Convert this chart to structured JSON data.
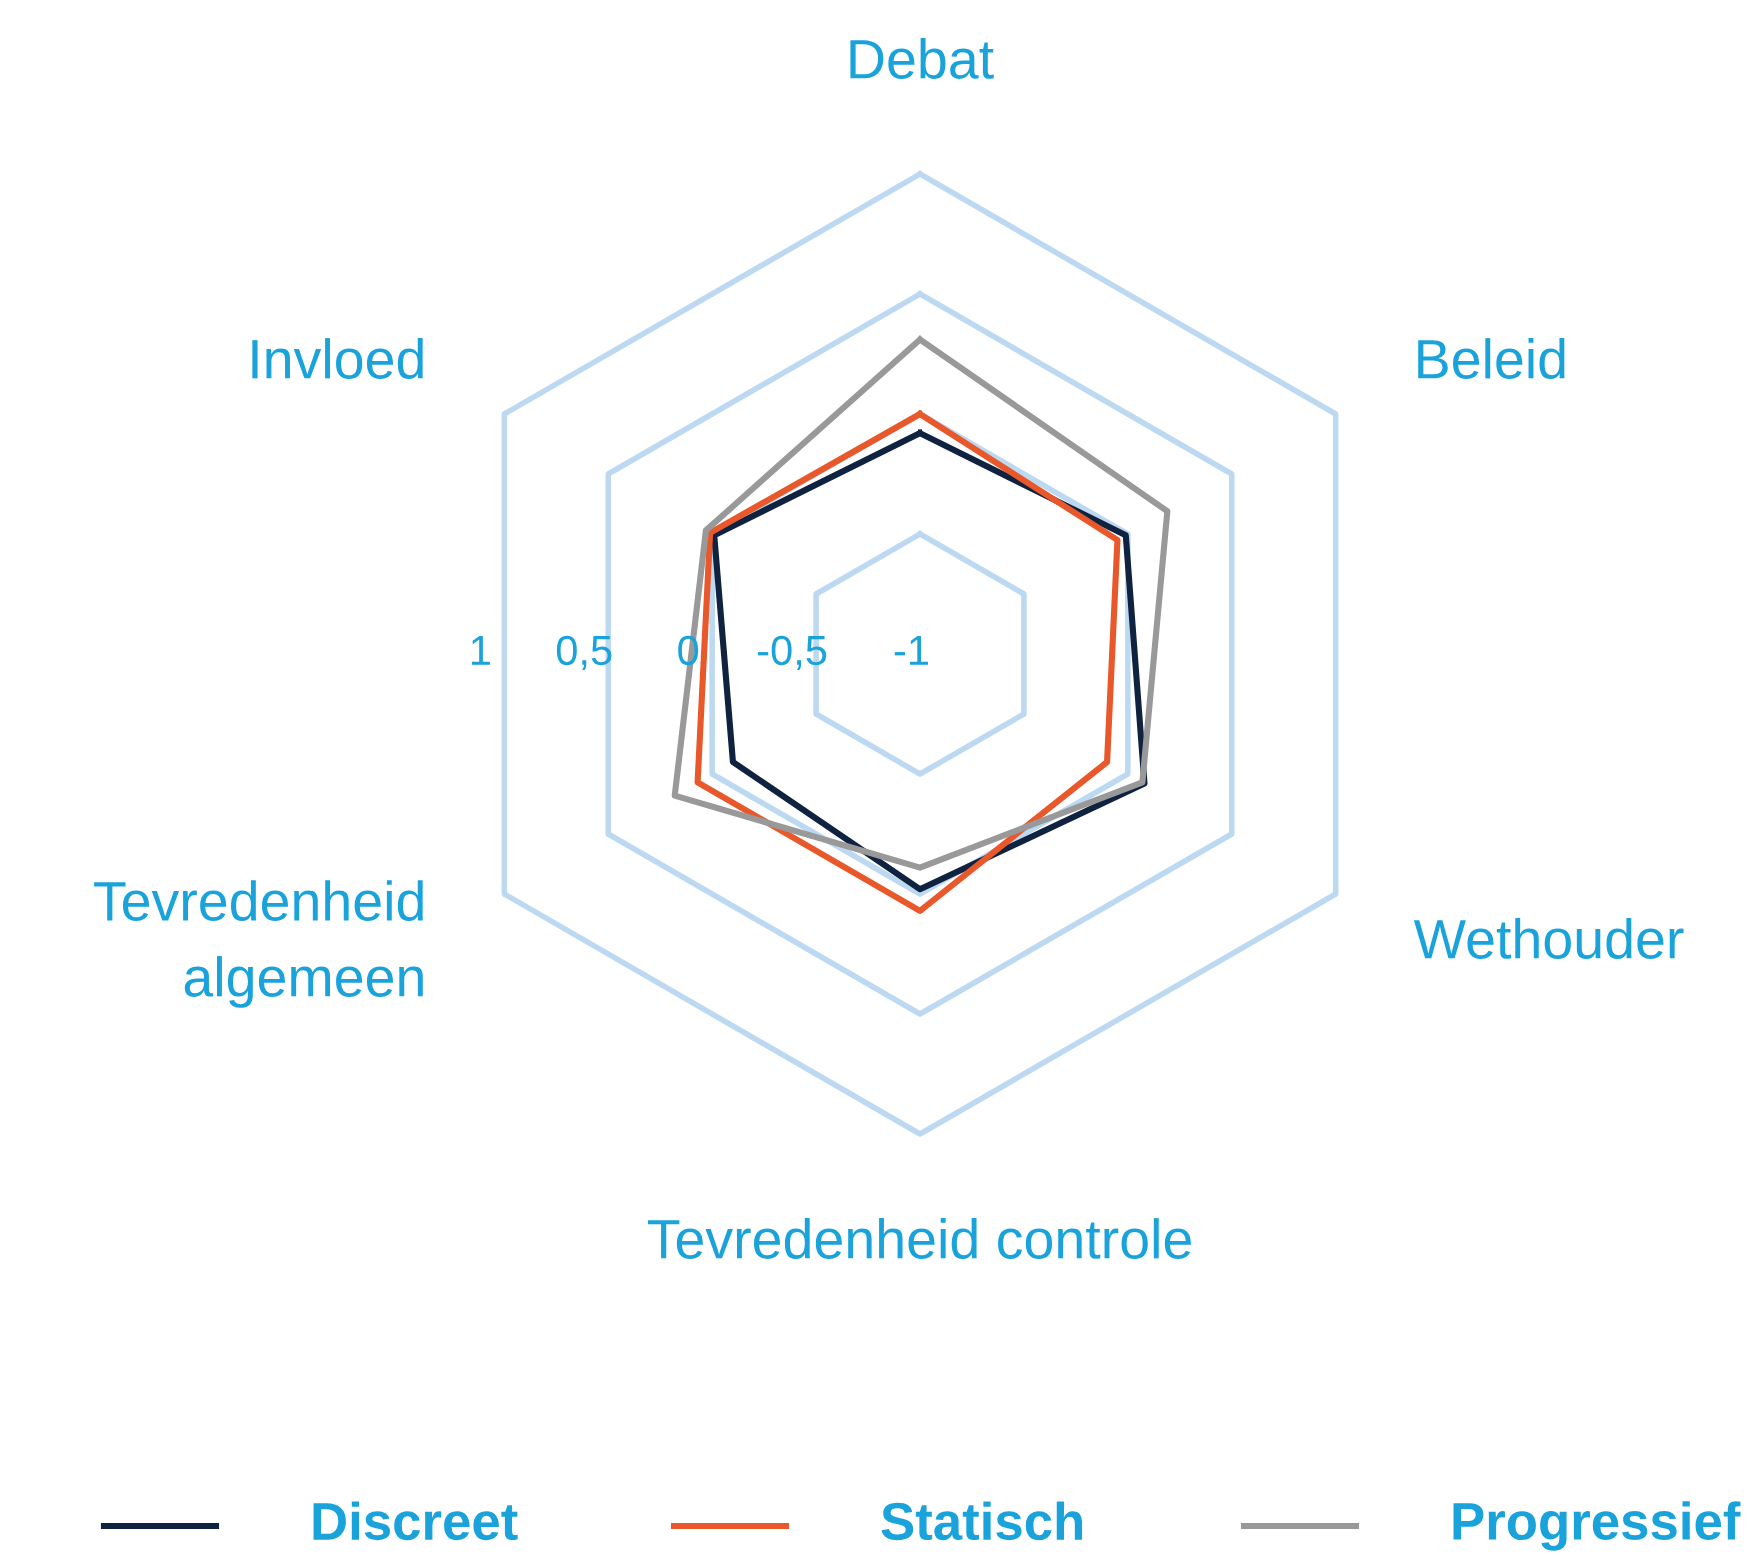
{
  "chart_data": {
    "type": "radar",
    "categories": [
      "Debat",
      "Beleid",
      "Wethouder",
      "Tevredenheid controle",
      "Tevredenheid\nalgemeen",
      "Invloed"
    ],
    "ylim": [
      -1,
      1
    ],
    "yticks": [
      1,
      {
        "value": 0.5,
        "label": "0,5"
      },
      0,
      {
        "value": -0.5,
        "label": "-0,5"
      },
      -1
    ],
    "grid": true,
    "legend": "bottom",
    "marker": "none",
    "line_style": "solid",
    "series": [
      {
        "name": "Discreet",
        "color": "#0f2240",
        "values": [
          -0.08,
          -0.01,
          0.08,
          -0.02,
          -0.1,
          -0.01
        ]
      },
      {
        "name": "Statisch",
        "color": "#e8582a",
        "values": [
          0.0,
          -0.05,
          -0.1,
          0.07,
          0.07,
          0.01
        ]
      },
      {
        "name": "Progressief",
        "color": "#999999",
        "values": [
          0.31,
          0.19,
          0.07,
          -0.11,
          0.18,
          0.03
        ]
      }
    ]
  }
}
